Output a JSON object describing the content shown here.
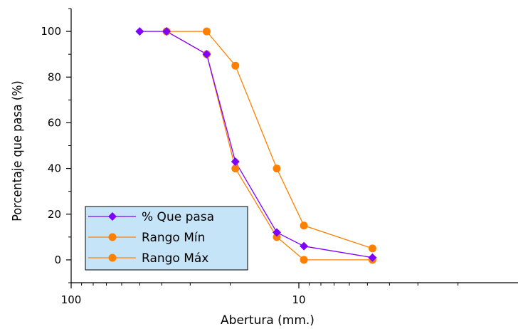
{
  "chart_data": {
    "type": "line",
    "title": "",
    "xlabel": "Abertura (mm.)",
    "ylabel": "Porcentaje que pasa (%)",
    "x_scale": "log",
    "x_reversed": true,
    "xlim": [
      100,
      1
    ],
    "ylim": [
      -10,
      110
    ],
    "x_ticks": [
      {
        "value": 100,
        "label": "100"
      },
      {
        "value": 10,
        "label": "10"
      }
    ],
    "y_ticks": [
      {
        "value": 0,
        "label": "0"
      },
      {
        "value": 20,
        "label": "20"
      },
      {
        "value": 40,
        "label": "40"
      },
      {
        "value": 60,
        "label": "60"
      },
      {
        "value": 80,
        "label": "80"
      },
      {
        "value": 100,
        "label": "100"
      }
    ],
    "grid": false,
    "legend_position": "bottom-left",
    "series": [
      {
        "name": "% Que pasa",
        "color": "#8000ff",
        "marker": "diamond",
        "points": [
          [
            50,
            100
          ],
          [
            38.1,
            100
          ],
          [
            25.4,
            90
          ],
          [
            19,
            43
          ],
          [
            12.5,
            12
          ],
          [
            9.5,
            6
          ],
          [
            4.75,
            1
          ]
        ]
      },
      {
        "name": "Rango Mín",
        "color": "#ff8000",
        "marker": "circle",
        "points": [
          [
            38.1,
            100
          ],
          [
            25.4,
            90
          ],
          [
            19,
            40
          ],
          [
            12.5,
            10
          ],
          [
            9.5,
            0
          ],
          [
            4.75,
            0
          ]
        ]
      },
      {
        "name": "Rango Máx",
        "color": "#ff8000",
        "marker": "circle",
        "points": [
          [
            38.1,
            100
          ],
          [
            25.4,
            100
          ],
          [
            19,
            85
          ],
          [
            12.5,
            40
          ],
          [
            9.5,
            15
          ],
          [
            4.75,
            5
          ]
        ]
      }
    ]
  }
}
